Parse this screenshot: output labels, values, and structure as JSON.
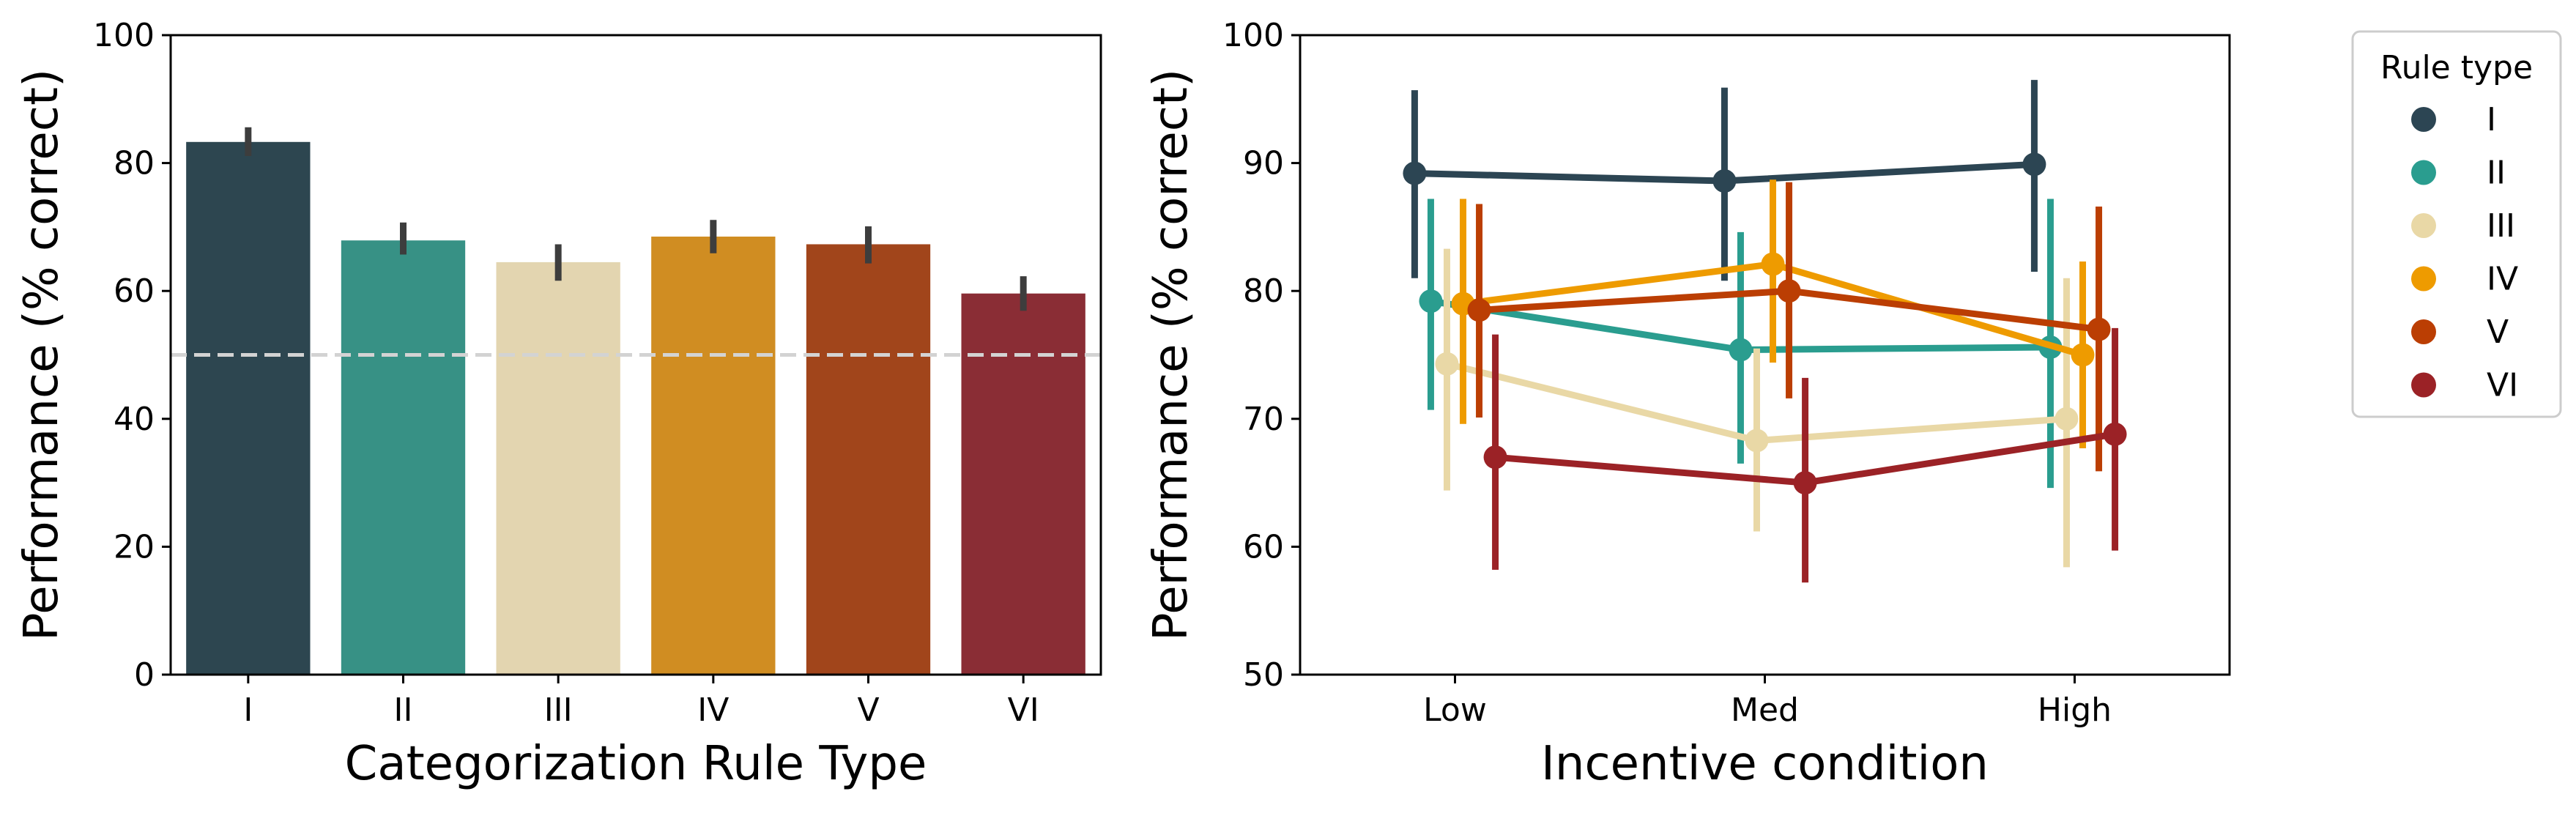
{
  "chart_data": [
    {
      "type": "bar",
      "categories": [
        "I",
        "II",
        "III",
        "IV",
        "V",
        "VI"
      ],
      "values": [
        83.3,
        67.9,
        64.5,
        68.5,
        67.3,
        59.6
      ],
      "error": [
        [
          81.1,
          85.6
        ],
        [
          65.7,
          70.7
        ],
        [
          61.6,
          67.3
        ],
        [
          65.9,
          71.1
        ],
        [
          64.3,
          70.1
        ],
        [
          56.9,
          62.3
        ]
      ],
      "colors": [
        "#2d4650",
        "#379185",
        "#e3d5b0",
        "#d08d22",
        "#a1451b",
        "#8a2d35"
      ],
      "xlabel": "Categorization Rule Type",
      "ylabel": "Performance (% correct)",
      "ylim": [
        0,
        100
      ],
      "yticks": [
        "0",
        "20",
        "40",
        "60",
        "80",
        "100"
      ],
      "reference_line": {
        "y": 50,
        "style": "dashed",
        "color": "#d3d3d3"
      },
      "grid": false
    },
    {
      "type": "line",
      "categories": [
        "Low",
        "Med",
        "High"
      ],
      "xlabel": "Incentive condition",
      "ylabel": "Performance (% correct)",
      "ylim": [
        50,
        100
      ],
      "yticks": [
        "50",
        "60",
        "70",
        "80",
        "90",
        "100"
      ],
      "grid": false,
      "legend": {
        "title": "Rule type",
        "placement": "outside-right"
      },
      "series": [
        {
          "name": "I",
          "color": "#2c4553",
          "values": [
            89.2,
            88.6,
            89.9
          ],
          "ci": [
            [
              81.0,
              95.7
            ],
            [
              80.8,
              95.9
            ],
            [
              81.5,
              96.5
            ]
          ]
        },
        {
          "name": "II",
          "color": "#2a9d8f",
          "values": [
            79.2,
            75.4,
            75.6
          ],
          "ci": [
            [
              70.7,
              87.2
            ],
            [
              66.5,
              84.6
            ],
            [
              64.6,
              87.2
            ]
          ]
        },
        {
          "name": "III",
          "color": "#e9d8a6",
          "values": [
            74.3,
            68.3,
            70.0
          ],
          "ci": [
            [
              64.4,
              83.3
            ],
            [
              61.2,
              75.5
            ],
            [
              58.4,
              81.0
            ]
          ]
        },
        {
          "name": "IV",
          "color": "#ee9b00",
          "values": [
            79.0,
            82.1,
            75.0
          ],
          "ci": [
            [
              69.6,
              87.2
            ],
            [
              74.4,
              88.7
            ],
            [
              67.7,
              82.3
            ]
          ]
        },
        {
          "name": "V",
          "color": "#bb3e03",
          "values": [
            78.5,
            80.0,
            77.0
          ],
          "ci": [
            [
              70.1,
              86.8
            ],
            [
              71.6,
              88.5
            ],
            [
              65.9,
              86.6
            ]
          ]
        },
        {
          "name": "VI",
          "color": "#9b2226",
          "values": [
            67.0,
            65.0,
            68.8
          ],
          "ci": [
            [
              58.2,
              76.6
            ],
            [
              57.2,
              73.2
            ],
            [
              59.7,
              77.1
            ]
          ]
        }
      ]
    }
  ]
}
